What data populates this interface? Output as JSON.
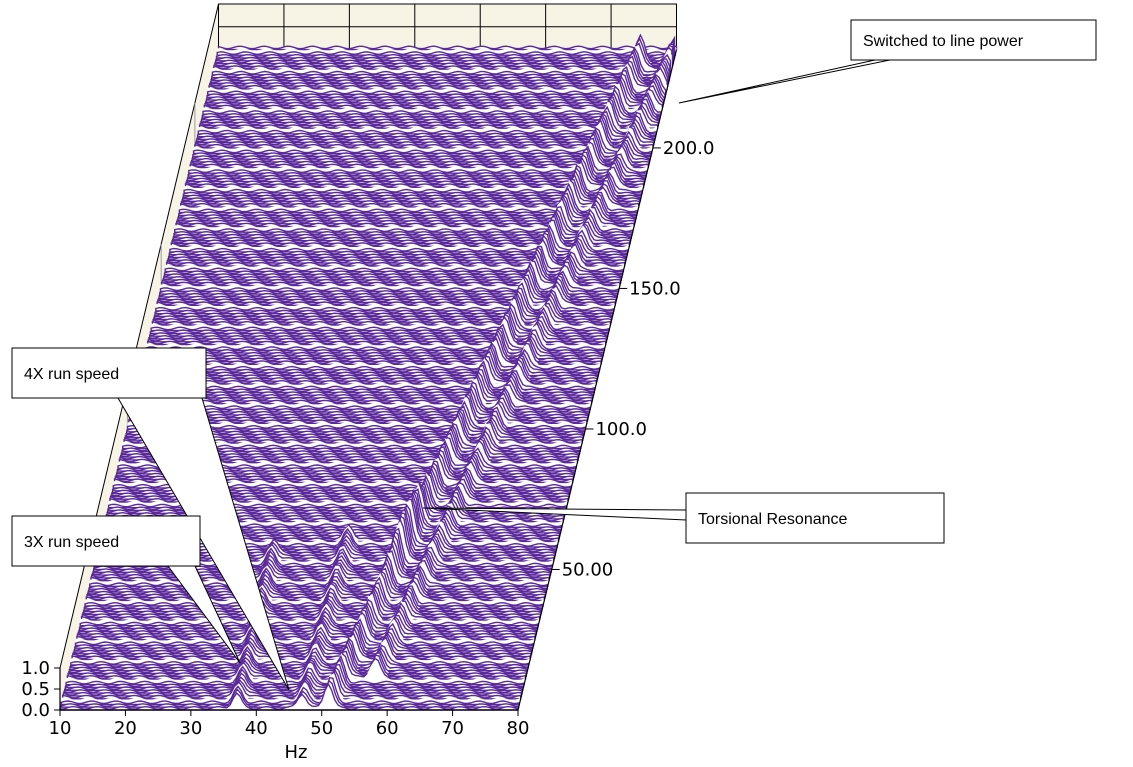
{
  "chart_data": {
    "type": "waterfall",
    "x_unit_label": "Hz",
    "x_range": [
      10,
      80
    ],
    "x_ticks": [
      "10",
      "20",
      "30",
      "40",
      "50",
      "60",
      "70",
      "80"
    ],
    "z_ticks": [
      "0.0",
      "0.5",
      "1.0"
    ],
    "z_range": [
      0,
      1.0
    ],
    "y_ticks": [
      "50.00",
      "100.0",
      "150.0",
      "200.0"
    ],
    "y_range": [
      0,
      235
    ],
    "grid": true,
    "trace_color": "#5b2a9a",
    "ridges": [
      {
        "description_key": "3x",
        "x_start": 37,
        "x_end": 37,
        "y_start": 0,
        "y_end": 55
      },
      {
        "description_key": "4x",
        "x_start": 47,
        "x_end": 48,
        "y_start": 0,
        "y_end": 60
      },
      {
        "description_key": "torsional",
        "x_start": 51,
        "x_end": 75,
        "y_start": 0,
        "y_end": 230
      },
      {
        "description_key": "line",
        "x_start": 57,
        "x_end": 80,
        "y_start": 10,
        "y_end": 232
      }
    ],
    "annotations": [
      {
        "label": "Switched to line power"
      },
      {
        "label": "Torsional Resonance"
      },
      {
        "label": "4X run speed"
      },
      {
        "label": "3X run speed"
      }
    ]
  },
  "colors": {
    "background_panel": "#f7f4e6",
    "trace": "#5b2a9a",
    "highlight": "#ffffff",
    "grid": "#000000"
  }
}
